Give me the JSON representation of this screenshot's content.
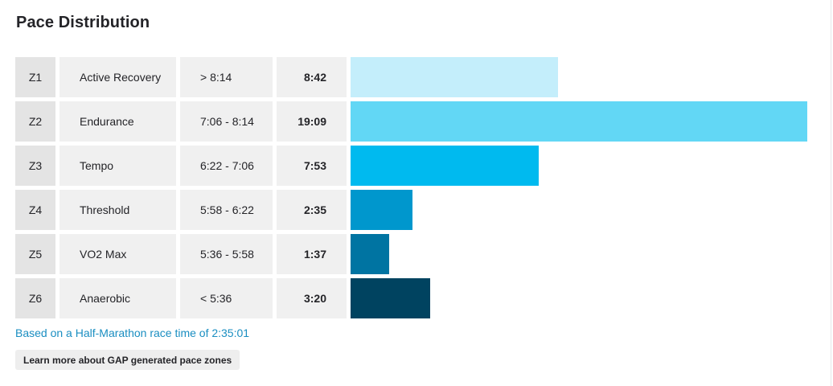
{
  "title": "Pace Distribution",
  "chart_data": {
    "type": "bar",
    "orientation": "horizontal",
    "title": "Pace Distribution",
    "xlabel": "",
    "ylabel": "",
    "unit": "min:sec",
    "categories": [
      "Z1",
      "Z2",
      "Z3",
      "Z4",
      "Z5",
      "Z6"
    ],
    "zone_names": [
      "Active Recovery",
      "Endurance",
      "Tempo",
      "Threshold",
      "VO2 Max",
      "Anaerobic"
    ],
    "pace_ranges": [
      "> 8:14",
      "7:06 - 8:14",
      "6:22 - 7:06",
      "5:58 - 6:22",
      "5:36 - 5:58",
      "< 5:36"
    ],
    "time_labels": [
      "8:42",
      "19:09",
      "7:53",
      "2:35",
      "1:37",
      "3:20"
    ],
    "values_seconds": [
      522,
      1149,
      473,
      155,
      97,
      200
    ],
    "bar_colors": [
      "#c4eefb",
      "#62d7f5",
      "#00baef",
      "#0097cd",
      "#0074a2",
      "#004360"
    ],
    "grid": false,
    "legend": "none"
  },
  "footnote": "Based on a Half-Marathon race time of 2:35:01",
  "learn_more_label": "Learn more about GAP generated pace zones"
}
